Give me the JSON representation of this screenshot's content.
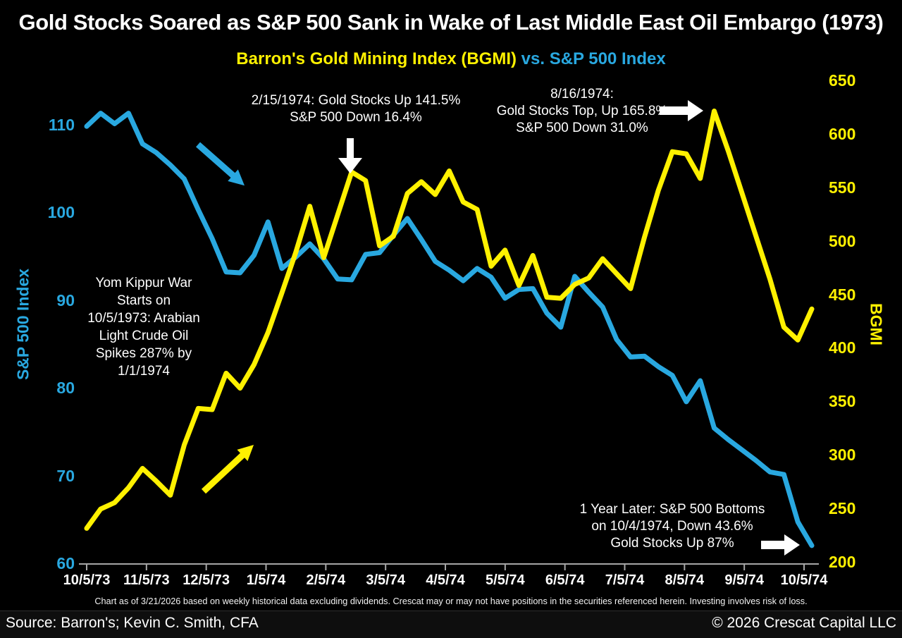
{
  "header": {
    "title": "Gold Stocks Soared as S&P 500 Sank in Wake of Last Middle East Oil Embargo (1973)",
    "subtitle_gold": "Barron's Gold Mining Index (BGMI)",
    "subtitle_blue": " vs. S&P 500 Index"
  },
  "chart_data": {
    "type": "line",
    "frequency": "weekly",
    "x_tick_labels": [
      "10/5/73",
      "11/5/73",
      "12/5/73",
      "1/5/74",
      "2/5/74",
      "3/5/74",
      "4/5/74",
      "5/5/74",
      "6/5/74",
      "7/5/74",
      "8/5/74",
      "9/5/74",
      "10/5/74"
    ],
    "left_axis": {
      "label": "S&P 500 Index",
      "color": "#29A8E0",
      "min": 60,
      "max": 110,
      "ticks": [
        110,
        100,
        90,
        80,
        70,
        60
      ]
    },
    "right_axis": {
      "label": "BGMI",
      "color": "#FFF100",
      "min": 200,
      "max": 650,
      "ticks": [
        650,
        600,
        550,
        500,
        450,
        400,
        350,
        300,
        250,
        200
      ]
    },
    "grid": false,
    "legend": "none",
    "series": [
      {
        "name": "S&P 500 Index",
        "axis": "left",
        "color": "#29A8E0",
        "values": [
          109.9,
          111.4,
          110.2,
          111.4,
          107.9,
          106.9,
          105.5,
          103.9,
          100.4,
          97.1,
          93.3,
          93.2,
          95.2,
          99.0,
          93.7,
          95.0,
          96.5,
          94.8,
          92.5,
          92.4,
          95.3,
          95.5,
          97.5,
          99.4,
          97.0,
          94.5,
          93.5,
          92.3,
          93.7,
          92.7,
          90.3,
          91.3,
          91.4,
          88.6,
          87.0,
          92.8,
          91.0,
          89.3,
          85.6,
          83.6,
          83.7,
          82.5,
          81.5,
          78.5,
          80.9,
          75.5,
          74.2,
          73.0,
          71.8,
          70.5,
          70.2,
          64.8,
          62.1
        ]
      },
      {
        "name": "Barron's Gold Mining Index (BGMI)",
        "axis": "right",
        "color": "#FFF100",
        "values": [
          232,
          250,
          256,
          270,
          288,
          276,
          263,
          310,
          344,
          343,
          377,
          363,
          385,
          415,
          452,
          490,
          533,
          485,
          525,
          565,
          557,
          496,
          505,
          545,
          556,
          544,
          566,
          537,
          530,
          477,
          492,
          459,
          487,
          448,
          447,
          460,
          466,
          484,
          470,
          456,
          504,
          548,
          584,
          582,
          559,
          622,
          585,
          545,
          505,
          465,
          420,
          408,
          437
        ]
      }
    ]
  },
  "annotations": {
    "feb": "2/15/1974: Gold Stocks Up 141.5%\nS&P 500 Down 16.4%",
    "aug": "8/16/1974:\nGold Stocks Top, Up 165.8%\nS&P 500 Down 31.0%",
    "yom_kippur": "Yom Kippur War\nStarts on\n10/5/1973: Arabian\nLight Crude Oil\nSpikes 287% by\n1/1/1974",
    "one_year": "1 Year Later: S&P 500 Bottoms\non 10/4/1974, Down 43.6%\nGold Stocks Up 87%"
  },
  "footer": {
    "disclaimer": "Chart as of 3/21/2026 based on weekly historical data excluding dividends. Crescat may or may not have positions in the securities referenced herein. Investing involves risk of loss.",
    "source": "Source: Barron's; Kevin C. Smith, CFA",
    "copyright": "© 2026 Crescat Capital LLC"
  },
  "icons": {
    "down_arrow": "white-down-arrow",
    "right_arrow_top": "white-right-arrow",
    "right_arrow_bottom": "white-right-arrow",
    "blue_diag_arrow": "blue-down-right-arrow",
    "yellow_diag_arrow": "yellow-up-right-arrow"
  }
}
